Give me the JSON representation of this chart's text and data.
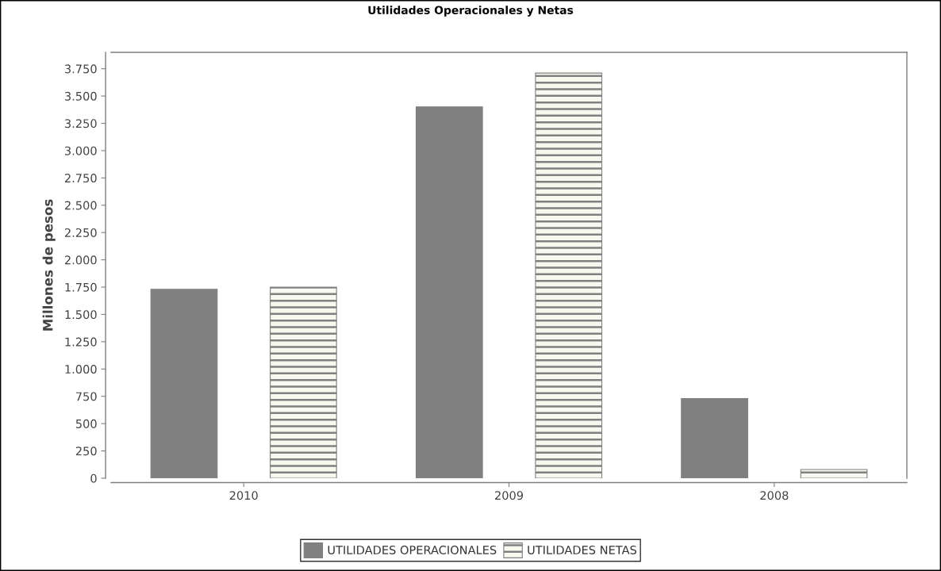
{
  "chart_data": {
    "type": "bar",
    "title": "Utilidades Operacionales y Netas",
    "ylabel": "Millones de pesos",
    "categories": [
      "2010",
      "2009",
      "2008"
    ],
    "series": [
      {
        "name": "UTILIDADES OPERACIONALES",
        "color": "#808080",
        "values": [
          1730,
          3400,
          730
        ]
      },
      {
        "name": "UTILIDADES NETAS",
        "color": "#808080",
        "values": [
          1750,
          3710,
          80
        ]
      }
    ],
    "ylim": [
      0,
      3900
    ],
    "yticks": [
      0,
      250,
      500,
      750,
      {
        "value": 1000,
        "label": "1.000"
      },
      {
        "value": 1250,
        "label": "1.250"
      },
      {
        "value": 1500,
        "label": "1.500"
      },
      {
        "value": 1750,
        "label": "1.750"
      },
      {
        "value": 2000,
        "label": "2.000"
      },
      {
        "value": 2250,
        "label": "2.250"
      },
      {
        "value": 2500,
        "label": "2.500"
      },
      {
        "value": 2750,
        "label": "2.750"
      },
      {
        "value": 3000,
        "label": "3.000"
      },
      {
        "value": 3250,
        "label": "3.250"
      },
      {
        "value": 3500,
        "label": "3.500"
      },
      {
        "value": 3750,
        "label": "3.750"
      }
    ],
    "grid": false,
    "legend": "bottom"
  }
}
